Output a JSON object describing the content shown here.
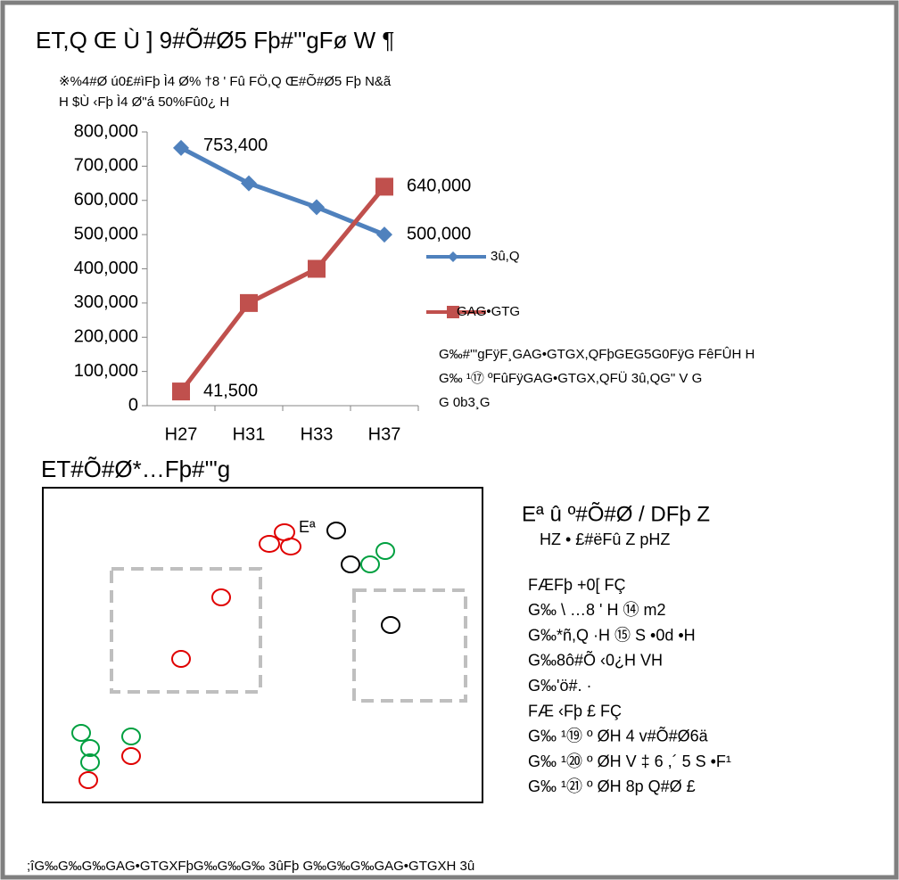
{
  "chart_data": {
    "type": "line",
    "title": "ET,Q Œ Ù ] 9#Õ#Ø5 Fþ#'\"gFø W ¶",
    "subtitle": [
      "※%4#Ø ú0£#ìFþ Ì4  Ø%  †8 ' Fû  FÖ,Q Œ#Õ#Ø5 Fþ N&ã",
      "H $Ù  ‹Fþ Ì4  Ø\"á 50%Fû0¿ H"
    ],
    "categories": [
      "H27",
      "H31",
      "H33",
      "H37"
    ],
    "series": [
      {
        "name": "3û,Q",
        "color": "#4f81bd",
        "marker": "diamond",
        "values": [
          753400,
          650000,
          580000,
          500000
        ],
        "value_labels": [
          "753,400",
          null,
          null,
          "500,000"
        ]
      },
      {
        "name": "GAG•GTG",
        "color": "#c0504d",
        "marker": "square",
        "values": [
          41500,
          300000,
          400000,
          640000
        ],
        "value_labels": [
          "41,500",
          null,
          null,
          "640,000"
        ]
      }
    ],
    "ylim": [
      0,
      800000
    ],
    "yticks": [
      0,
      {
        "value": 100000,
        "label": "100,000"
      },
      {
        "value": 200000,
        "label": "200,000"
      },
      {
        "value": 300000,
        "label": "300,000"
      },
      {
        "value": 400000,
        "label": "400,000"
      },
      {
        "value": 500000,
        "label": "500,000"
      },
      {
        "value": 600000,
        "label": "600,000"
      },
      {
        "value": 700000,
        "label": "700,000"
      },
      {
        "value": 800000,
        "label": "800,000"
      }
    ],
    "grid": false,
    "legend": "right",
    "annotations": [
      "G‰#'\"gFÿF¸GAG•GTGX,QFþGEG5G0FÿG FêFÛH H",
      "G‰ ¹⑰ ºFûFÿGAG•GTGX,QFÜ  3û,QG\" V G",
      "G 0b3¸G"
    ]
  },
  "diagram": {
    "title": "ET#Õ#Ø*…Fþ#'\"g",
    "label": "Eª"
  },
  "legend_panel": {
    "title": "Eª û   º#Õ#Ø / DFþ Z",
    "subtitle": "HZ • £#ëFû Z   pHZ",
    "lines": [
      "FÆFþ +0[    FÇ",
      "G‰ \\ …8 ' H ⑭  m2",
      "G‰*ñ,Q ·H  ⑮ S •0d •H",
      "G‰8ô#Õ ‹0¿H    VH",
      "G‰'ö#. ·",
      "FÆ ‹Fþ £     FÇ",
      "G‰ ¹⑲ º ØH 4 v#Õ#Ø6ä",
      "G‰ ¹⑳ º ØH  V   ‡ 6  ,´      5 S •F¹",
      "G‰ ¹㉑ º ØH  8p    Q#Ø £"
    ]
  },
  "footer": ";îG‰G‰G‰GAG•GTGXFþG‰G‰G‰  3ûFþ G‰G‰G‰GAG•GTGXH   3û"
}
